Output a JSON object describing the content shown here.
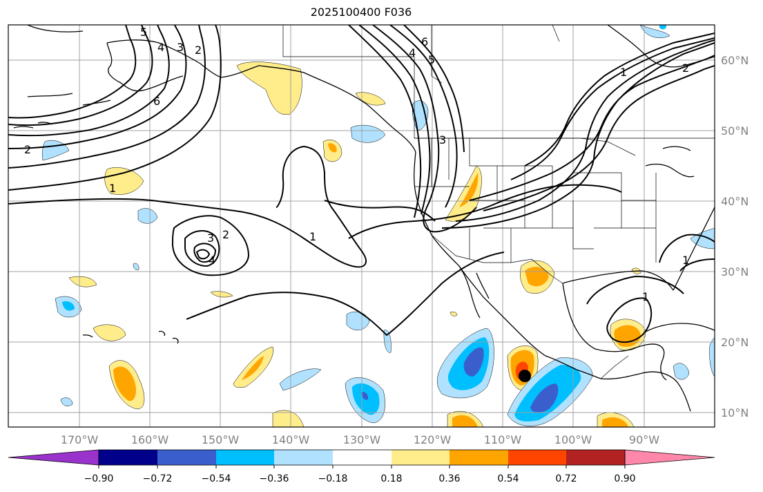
{
  "title": "2025100400 F036",
  "lat_labels": [
    "60°N",
    "50°N",
    "40°N",
    "30°N",
    "20°N",
    "10°N"
  ],
  "lon_labels": [
    "170°W",
    "160°W",
    "150°W",
    "140°W",
    "130°W",
    "120°W",
    "110°W",
    "100°W",
    "90°W"
  ],
  "colorbar": {
    "tick_labels": [
      "−0.90",
      "−0.72",
      "−0.54",
      "−0.36",
      "−0.18",
      "0.18",
      "0.36",
      "0.54",
      "0.72",
      "0.90"
    ],
    "colors": [
      "#9933cc",
      "#00008b",
      "#3a5fcd",
      "#00bfff",
      "#b0e2ff",
      "#ffffff",
      "#ffec8b",
      "#ffa500",
      "#ff4500",
      "#b22222",
      "#ff88aa"
    ]
  },
  "contour_labels": [
    "5",
    "4",
    "3",
    "2",
    "6",
    "1",
    "2",
    "3",
    "2",
    "4",
    "1",
    "6",
    "5",
    "4",
    "3",
    "2",
    "1",
    "1",
    "1"
  ],
  "marker": "storm-center-dot"
}
